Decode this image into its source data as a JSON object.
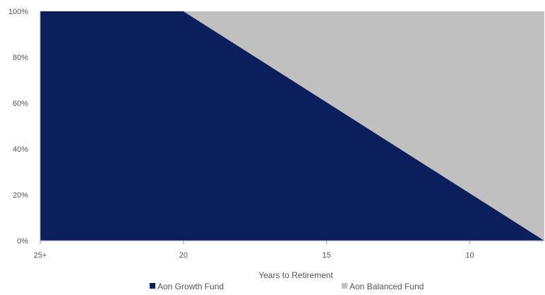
{
  "chart_data": {
    "type": "area",
    "stacked": true,
    "xlabel": "Years to Retirement",
    "ylabel": "",
    "title": "",
    "x_axis_direction": "descending",
    "xlim": [
      25,
      7.4
    ],
    "ylim": [
      0,
      100
    ],
    "x_ticks": [
      {
        "value": 25,
        "label": "25+"
      },
      {
        "value": 20,
        "label": "20"
      },
      {
        "value": 15,
        "label": "15"
      },
      {
        "value": 10,
        "label": "10"
      }
    ],
    "y_ticks": [
      {
        "value": 0,
        "label": "0%"
      },
      {
        "value": 20,
        "label": "20%"
      },
      {
        "value": 40,
        "label": "40%"
      },
      {
        "value": 60,
        "label": "60%"
      },
      {
        "value": 80,
        "label": "80%"
      },
      {
        "value": 100,
        "label": "100%"
      }
    ],
    "x": [
      25,
      20,
      7.4
    ],
    "series": [
      {
        "name": "Aon Growth Fund",
        "color": "#0b1f5c",
        "values": [
          100,
          100,
          0
        ]
      },
      {
        "name": "Aon Balanced Fund",
        "color": "#c0c0c0",
        "values": [
          0,
          0,
          100
        ]
      }
    ],
    "legend_position": "bottom",
    "grid": false
  }
}
